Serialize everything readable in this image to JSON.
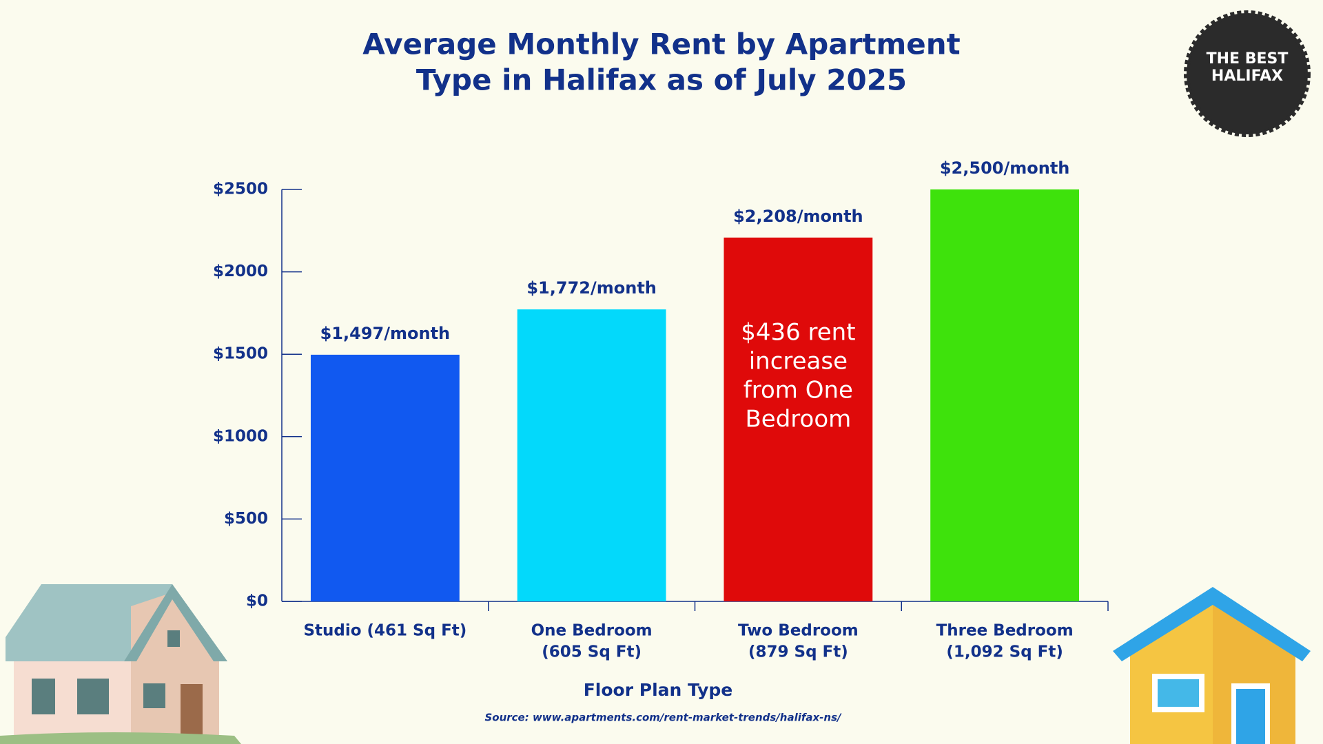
{
  "chart_data": {
    "type": "bar",
    "title": [
      "Average Monthly Rent by Apartment",
      "Type in Halifax as of July 2025"
    ],
    "categories": [
      [
        "Studio (461 Sq Ft)"
      ],
      [
        "One Bedroom",
        "(605 Sq Ft)"
      ],
      [
        "Two Bedroom",
        "(879 Sq Ft)"
      ],
      [
        "Three Bedroom",
        "(1,092 Sq Ft)"
      ]
    ],
    "values": [
      1497,
      1772,
      2208,
      2500
    ],
    "value_labels": [
      "$1,497/month",
      "$1,772/month",
      "$2,208/month",
      "$2,500/month"
    ],
    "colors": [
      "#1159f0",
      "#03d9fb",
      "#df0a0a",
      "#3ee20c"
    ],
    "ylim": [
      0,
      2500
    ],
    "yticks": [
      {
        "value": 0,
        "label": "$0"
      },
      {
        "value": 500,
        "label": "$500"
      },
      {
        "value": 1000,
        "label": "$1000"
      },
      {
        "value": 1500,
        "label": "$1500"
      },
      {
        "value": 2000,
        "label": "$2000"
      },
      {
        "value": 2500,
        "label": "$2500"
      }
    ],
    "xlabel": "Floor Plan Type",
    "grid": false,
    "annotation": {
      "category": 2,
      "lines": [
        "$436 rent",
        "increase",
        "from One",
        "Bedroom"
      ]
    },
    "source": "Source: www.apartments.com/rent-market-trends/halifax-ns/",
    "logo": [
      "THE BEST",
      "HALIFAX"
    ]
  }
}
